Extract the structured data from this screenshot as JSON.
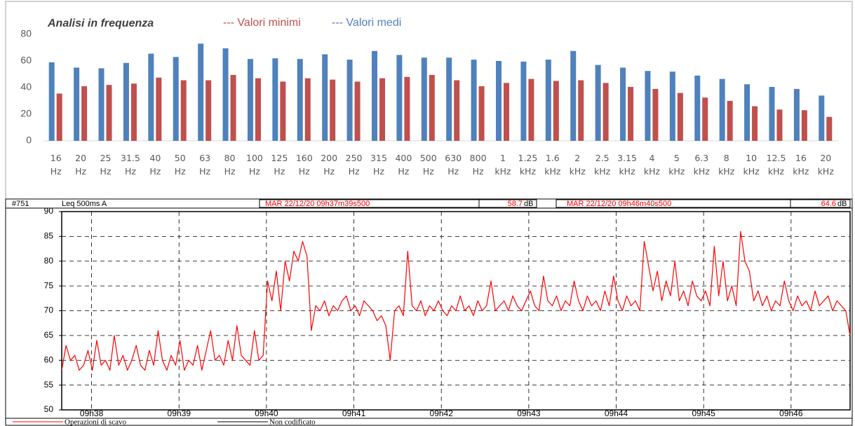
{
  "chart_data": [
    {
      "type": "bar",
      "title": "Analisi in frequenza",
      "categories": [
        "16 Hz",
        "20 Hz",
        "25 Hz",
        "31.5 Hz",
        "40 Hz",
        "50 Hz",
        "63 Hz",
        "80 Hz",
        "100 Hz",
        "125 Hz",
        "160 Hz",
        "200 Hz",
        "250 Hz",
        "315 Hz",
        "400 Hz",
        "500 Hz",
        "630 Hz",
        "800 Hz",
        "1 kHz",
        "1.25 kHz",
        "1.6 kHz",
        "2 kHz",
        "2.5 kHz",
        "3.15 kHz",
        "4 kHz",
        "5 kHz",
        "6.3 kHz",
        "8 kHz",
        "10 kHz",
        "12.5 kHz",
        "16 kHz",
        "20 kHz"
      ],
      "series": [
        {
          "name": "--- Valori minimi",
          "color": "#c0504d",
          "values": [
            35.5,
            41,
            42,
            43,
            47.5,
            45.5,
            45.5,
            49.5,
            47,
            44.5,
            47,
            46,
            44.5,
            47,
            48,
            49.5,
            45.5,
            41,
            43.5,
            46.5,
            45,
            45.5,
            43.5,
            40.5,
            39,
            36,
            32.5,
            30,
            26,
            23.5,
            23,
            18
          ]
        },
        {
          "name": "--- Valori medi",
          "color": "#4f81bd",
          "values": [
            59,
            55,
            54.5,
            58.5,
            65.5,
            63,
            73,
            69.5,
            61.5,
            62,
            61.5,
            65,
            61,
            67.5,
            64.5,
            62.5,
            62.5,
            61,
            60,
            59.5,
            61,
            67.5,
            57,
            55,
            52.5,
            52,
            49,
            46.5,
            42.5,
            40.5,
            39,
            34
          ]
        }
      ],
      "ylim": [
        0,
        80
      ],
      "yticks": [
        0,
        20,
        40,
        60,
        80
      ],
      "grid": false
    },
    {
      "type": "line",
      "header": {
        "id": "#751",
        "measure": "Leq 500ms A",
        "start": "MAR 22/12/20 09h37m39s500",
        "start_value": 58.7,
        "unit": "dB",
        "end": "MAR 22/12/20 09h46m40s500",
        "end_value": 64.6
      },
      "color": "#ff0000",
      "values": [
        58,
        63,
        60,
        61,
        58,
        59,
        62,
        58,
        64,
        59,
        60,
        58,
        65,
        59,
        61,
        58,
        60,
        63,
        59,
        58,
        62,
        59,
        66,
        60,
        58,
        61,
        59,
        64,
        58,
        60,
        59,
        63,
        58,
        62,
        66,
        60,
        61,
        59,
        64,
        60,
        67,
        61,
        60,
        59,
        66,
        60,
        61,
        76,
        72,
        78,
        70,
        80,
        76,
        82,
        80,
        84,
        81,
        66,
        71,
        70,
        72,
        69,
        71,
        70,
        72,
        73,
        70,
        71,
        69,
        72,
        71,
        70,
        68,
        69,
        67,
        60,
        70,
        71,
        69,
        82,
        71,
        70,
        72,
        69,
        71,
        70,
        72,
        70,
        69,
        71,
        70,
        73,
        70,
        71,
        69,
        72,
        70,
        71,
        76,
        70,
        71,
        72,
        70,
        73,
        71,
        70,
        72,
        74,
        71,
        70,
        77,
        72,
        71,
        73,
        70,
        72,
        71,
        76,
        72,
        70,
        73,
        71,
        72,
        70,
        74,
        71,
        77,
        72,
        70,
        73,
        71,
        72,
        70,
        84,
        79,
        74,
        78,
        72,
        76,
        73,
        80,
        72,
        74,
        71,
        76,
        73,
        72,
        74,
        71,
        83,
        73,
        80,
        72,
        75,
        71,
        86,
        80,
        78,
        72,
        74,
        71,
        73,
        70,
        72,
        71,
        76,
        72,
        70,
        73,
        71,
        72,
        70,
        74,
        71,
        72,
        73,
        70,
        72,
        71,
        70,
        65
      ],
      "ylim": [
        50,
        90
      ],
      "yticks": [
        50,
        55,
        60,
        65,
        70,
        75,
        80,
        85,
        90
      ],
      "xticks": [
        "09h38",
        "09h39",
        "09h40",
        "09h41",
        "09h42",
        "09h43",
        "09h44",
        "09h45",
        "09h46"
      ],
      "grid": true,
      "legend": [
        {
          "name": "Operazioni di scavo",
          "color": "#ff0000"
        },
        {
          "name": "Non codificato",
          "color": "#000000"
        }
      ]
    }
  ]
}
